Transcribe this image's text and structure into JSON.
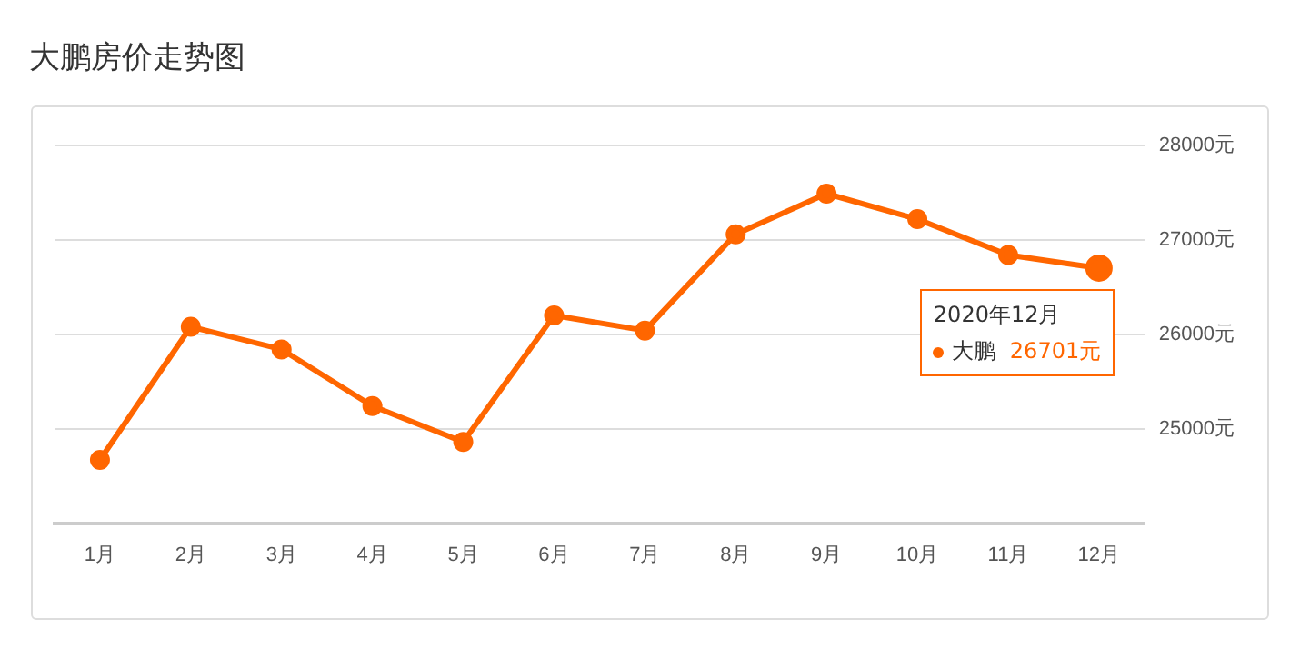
{
  "chart_data": {
    "type": "line",
    "title": "大鹏房价走势图",
    "categories": [
      "1月",
      "2月",
      "3月",
      "4月",
      "5月",
      "6月",
      "7月",
      "8月",
      "9月",
      "10月",
      "11月",
      "12月"
    ],
    "series": [
      {
        "name": "大鹏",
        "color": "#ff6600",
        "values": [
          24670,
          26080,
          25840,
          25240,
          24860,
          26200,
          26040,
          27060,
          27490,
          27220,
          26840,
          26701
        ],
        "value_labels": [
          null,
          null,
          null,
          null,
          null,
          null,
          null,
          null,
          null,
          null,
          null,
          "26701元"
        ]
      }
    ],
    "annotations": [
      "2020年12月"
    ],
    "ylim": [
      24000,
      28000
    ],
    "yticks": [
      {
        "value": 24000,
        "label": null
      },
      {
        "value": 25000,
        "label": "25000元"
      },
      {
        "value": 26000,
        "label": "26000元"
      },
      {
        "value": 27000,
        "label": "27000元"
      },
      {
        "value": 28000,
        "label": "28000元"
      }
    ],
    "grid": "y",
    "legend": "right",
    "marker": "circle",
    "line_style": "solid"
  }
}
